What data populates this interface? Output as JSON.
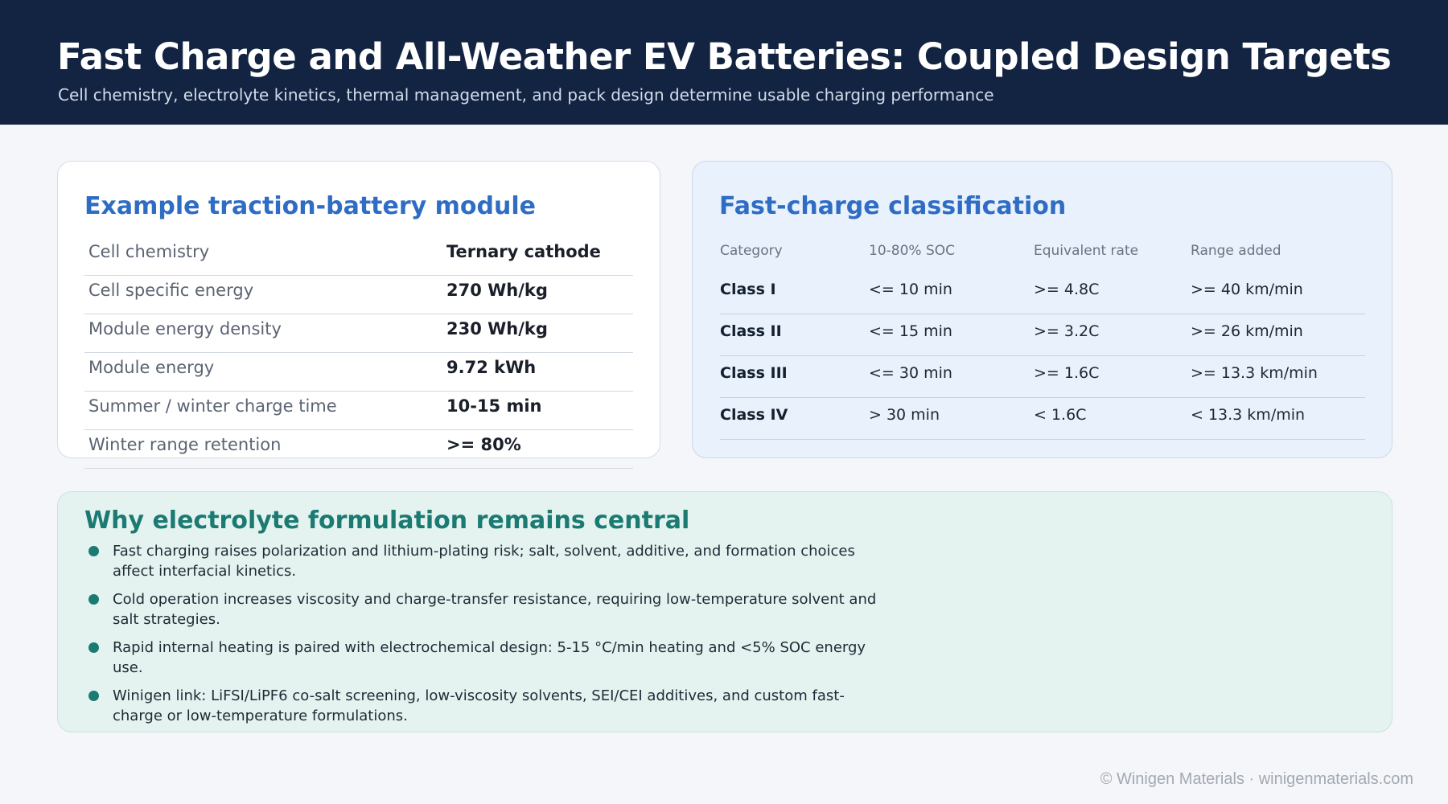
{
  "header": {
    "title": "Fast Charge and All-Weather EV Batteries: Coupled Design Targets",
    "subtitle": "Cell chemistry, electrolyte kinetics, thermal management, and pack design determine usable charging performance"
  },
  "module_card": {
    "title": "Example traction-battery module",
    "rows": [
      {
        "label": "Cell chemistry",
        "value": "Ternary cathode"
      },
      {
        "label": "Cell specific energy",
        "value": "270 Wh/kg"
      },
      {
        "label": "Module energy density",
        "value": "230 Wh/kg"
      },
      {
        "label": "Module energy",
        "value": "9.72 kWh"
      },
      {
        "label": "Summer / winter charge time",
        "value": "10-15 min"
      },
      {
        "label": "Winter range retention",
        "value": ">= 80%"
      }
    ]
  },
  "classification_card": {
    "title": "Fast-charge classification",
    "headers": [
      "Category",
      "10-80% SOC",
      "Equivalent rate",
      "Range added"
    ],
    "rows": [
      [
        "Class I",
        "<= 10 min",
        ">= 4.8C",
        ">= 40 km/min"
      ],
      [
        "Class II",
        "<= 15 min",
        ">= 3.2C",
        ">= 26 km/min"
      ],
      [
        "Class III",
        "<= 30 min",
        ">= 1.6C",
        ">= 13.3 km/min"
      ],
      [
        "Class IV",
        "> 30 min",
        "< 1.6C",
        "< 13.3 km/min"
      ]
    ]
  },
  "electrolyte_card": {
    "title": "Why electrolyte formulation remains central",
    "bullets": [
      "Fast charging raises polarization and lithium-plating risk; salt, solvent, additive, and formation choices affect interfacial kinetics.",
      "Cold operation increases viscosity and charge-transfer resistance, requiring low-temperature solvent and salt strategies.",
      "Rapid internal heating is paired with electrochemical design: 5-15 °C/min heating and <5% SOC energy use.",
      "Winigen link: LiFSI/LiPF6 co-salt screening, low-viscosity solvents, SEI/CEI additives, and custom fast-charge or low-temperature formulations."
    ]
  },
  "footer": {
    "text": "© Winigen Materials · winigenmaterials.com"
  },
  "colors": {
    "header_bg": "#132442",
    "accent_blue": "#2f6cc4",
    "accent_teal": "#1b7a72"
  }
}
